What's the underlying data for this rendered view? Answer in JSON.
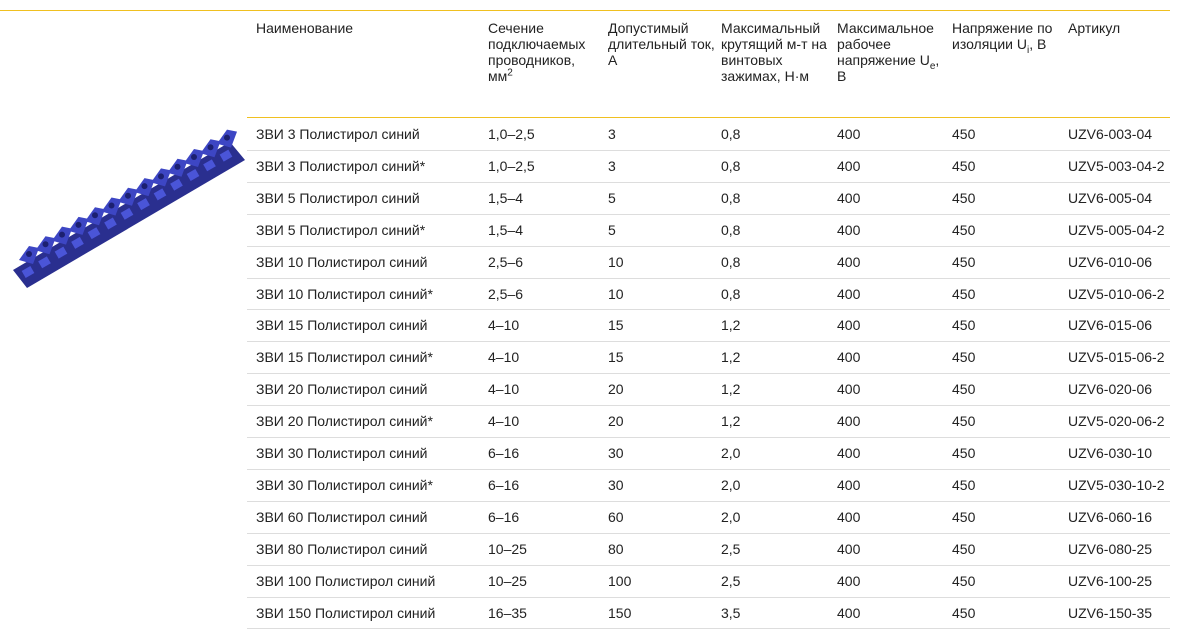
{
  "table": {
    "headers": [
      [
        {
          "t": "Наименование"
        }
      ],
      [
        {
          "t": "Сечение подключаемых проводников, мм"
        },
        {
          "sup": "2"
        }
      ],
      [
        {
          "t": "Допустимый длительный ток, А"
        }
      ],
      [
        {
          "t": "Максимальный крутящий м-т на винтовых зажимах, Н·м"
        }
      ],
      [
        {
          "t": "Максимальное рабочее напряжение U"
        },
        {
          "sub": "e"
        },
        {
          "t": ", В"
        }
      ],
      [
        {
          "t": "Напряжение по изоляции U"
        },
        {
          "sub": "i"
        },
        {
          "t": ", В"
        }
      ],
      [
        {
          "t": "Артикул"
        }
      ]
    ],
    "rows": [
      [
        "ЗВИ 3 Полистирол синий",
        "1,0–2,5",
        3,
        "0,8",
        400,
        450,
        "UZV6-003-04"
      ],
      [
        "ЗВИ 3 Полистирол синий*",
        "1,0–2,5",
        3,
        "0,8",
        400,
        450,
        "UZV5-003-04-2"
      ],
      [
        "ЗВИ 5 Полистирол синий",
        "1,5–4",
        5,
        "0,8",
        400,
        450,
        "UZV6-005-04"
      ],
      [
        "ЗВИ 5 Полистирол синий*",
        "1,5–4",
        5,
        "0,8",
        400,
        450,
        "UZV5-005-04-2"
      ],
      [
        "ЗВИ 10 Полистирол синий",
        "2,5–6",
        10,
        "0,8",
        400,
        450,
        "UZV6-010-06"
      ],
      [
        "ЗВИ 10 Полистирол синий*",
        "2,5–6",
        10,
        "0,8",
        400,
        450,
        "UZV5-010-06-2"
      ],
      [
        "ЗВИ 15 Полистирол синий",
        "4–10",
        15,
        "1,2",
        400,
        450,
        "UZV6-015-06"
      ],
      [
        "ЗВИ 15 Полистирол синий*",
        "4–10",
        15,
        "1,2",
        400,
        450,
        "UZV5-015-06-2"
      ],
      [
        "ЗВИ 20 Полистирол синий",
        "4–10",
        20,
        "1,2",
        400,
        450,
        "UZV6-020-06"
      ],
      [
        "ЗВИ 20 Полистирол синий*",
        "4–10",
        20,
        "1,2",
        400,
        450,
        "UZV5-020-06-2"
      ],
      [
        "ЗВИ 30 Полистирол синий",
        "6–16",
        30,
        "2,0",
        400,
        450,
        "UZV6-030-10"
      ],
      [
        "ЗВИ 30 Полистирол синий*",
        "6–16",
        30,
        "2,0",
        400,
        450,
        "UZV5-030-10-2"
      ],
      [
        "ЗВИ 60 Полистирол синий",
        "6–16",
        60,
        "2,0",
        400,
        450,
        "UZV6-060-16"
      ],
      [
        "ЗВИ 80 Полистирол синий",
        "10–25",
        80,
        "2,5",
        400,
        450,
        "UZV6-080-25"
      ],
      [
        "ЗВИ 100 Полистирол синий",
        "10–25",
        100,
        "2,5",
        400,
        450,
        "UZV6-100-25"
      ],
      [
        "ЗВИ 150 Полистирол синий",
        "16–35",
        150,
        "3,5",
        400,
        450,
        "UZV6-150-35"
      ]
    ]
  }
}
